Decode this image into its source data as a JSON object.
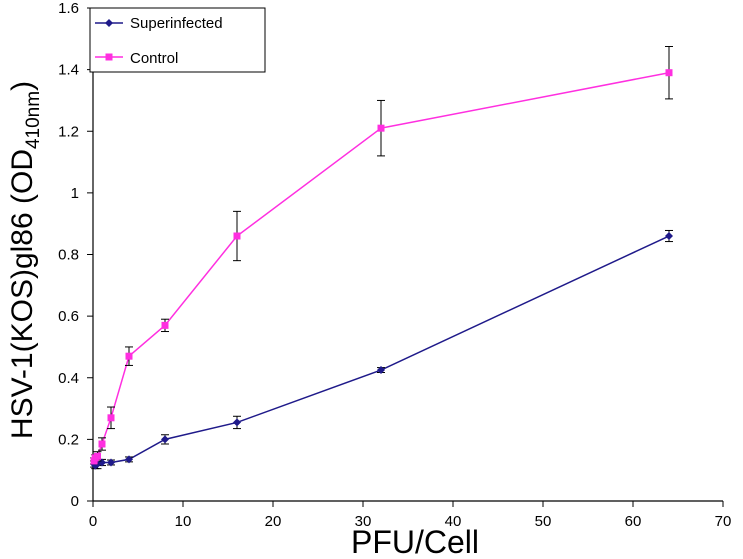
{
  "chart_data": {
    "type": "line",
    "title": "",
    "xlabel": "PFU/Cell",
    "ylabel": "HSV-1(KOS)gl86 (OD",
    "ylabel_sub": "410nm",
    "ylabel_close": ")",
    "xlim": [
      0,
      70
    ],
    "ylim": [
      0,
      1.6
    ],
    "xticks": [
      "0",
      "10",
      "20",
      "30",
      "40",
      "50",
      "60",
      "70"
    ],
    "yticks": [
      "0",
      "0.2",
      "0.4",
      "0.6",
      "0.8",
      "1",
      "1.2",
      "1.4",
      "1.6"
    ],
    "grid": false,
    "legend_position": "top-left",
    "series": [
      {
        "name": "Superinfected",
        "color": "#1f1a8a",
        "marker": "diamond",
        "x": [
          0.125,
          0.25,
          0.5,
          1,
          2,
          4,
          8,
          16,
          32,
          64
        ],
        "y": [
          0.12,
          0.115,
          0.12,
          0.125,
          0.125,
          0.135,
          0.2,
          0.255,
          0.425,
          0.86
        ],
        "err": [
          0.01,
          0.01,
          0.015,
          0.01,
          0.008,
          0.008,
          0.015,
          0.02,
          0.008,
          0.018
        ]
      },
      {
        "name": "Control",
        "color": "#ff2fe0",
        "marker": "square",
        "x": [
          0.125,
          0.25,
          0.5,
          1,
          2,
          4,
          8,
          16,
          32,
          64
        ],
        "y": [
          0.13,
          0.14,
          0.145,
          0.185,
          0.27,
          0.47,
          0.57,
          0.86,
          1.21,
          1.39
        ],
        "err": [
          0.01,
          0.01,
          0.015,
          0.02,
          0.035,
          0.03,
          0.02,
          0.08,
          0.09,
          0.085
        ]
      }
    ]
  }
}
